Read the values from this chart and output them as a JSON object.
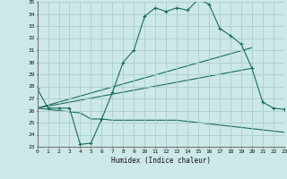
{
  "xlabel": "Humidex (Indice chaleur)",
  "xlim": [
    0,
    23
  ],
  "ylim": [
    23,
    35
  ],
  "yticks": [
    23,
    24,
    25,
    26,
    27,
    28,
    29,
    30,
    31,
    32,
    33,
    34,
    35
  ],
  "xticks": [
    0,
    1,
    2,
    3,
    4,
    5,
    6,
    7,
    8,
    9,
    10,
    11,
    12,
    13,
    14,
    15,
    16,
    17,
    18,
    19,
    20,
    21,
    22,
    23
  ],
  "bg_color": "#cde8e8",
  "grid_color": "#aacece",
  "line_color": "#1a6b5a",
  "line1_x": [
    0,
    1,
    2,
    3,
    4,
    5,
    6,
    7,
    8,
    9,
    10,
    11,
    12,
    13,
    14,
    15,
    16,
    17,
    18,
    19,
    20,
    21,
    22,
    23
  ],
  "line1_y": [
    27.8,
    26.2,
    26.2,
    26.2,
    23.2,
    23.3,
    25.3,
    27.5,
    30.0,
    31.0,
    33.8,
    34.5,
    34.2,
    34.5,
    34.3,
    35.2,
    34.8,
    32.8,
    32.2,
    31.5,
    29.5,
    26.7,
    26.2,
    26.1
  ],
  "line2_x": [
    0,
    20
  ],
  "line2_y": [
    26.2,
    29.5
  ],
  "line3_x": [
    0,
    20
  ],
  "line3_y": [
    26.2,
    31.2
  ],
  "line4_x": [
    0,
    4,
    5,
    6,
    7,
    8,
    9,
    10,
    11,
    12,
    13,
    14,
    15,
    16,
    17,
    18,
    19,
    20,
    21,
    22,
    23
  ],
  "line4_y": [
    26.2,
    25.8,
    25.3,
    25.3,
    25.2,
    25.2,
    25.2,
    25.2,
    25.2,
    25.2,
    25.2,
    25.1,
    25.0,
    24.9,
    24.8,
    24.7,
    24.6,
    24.5,
    24.4,
    24.3,
    24.2
  ],
  "marker": "+"
}
